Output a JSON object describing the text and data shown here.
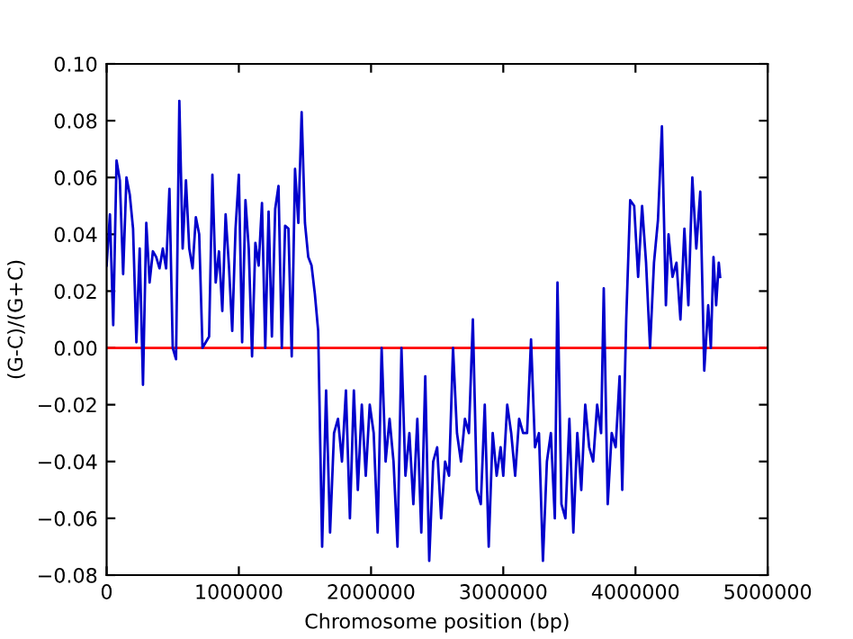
{
  "chart_data": {
    "type": "line",
    "xlabel": "Chromosome position (bp)",
    "ylabel": "(G-C)/(G+C)",
    "xlim": [
      0,
      5000000
    ],
    "ylim": [
      -0.08,
      0.1
    ],
    "xticks": [
      0,
      1000000,
      2000000,
      3000000,
      4000000,
      5000000
    ],
    "yticks": [
      {
        "value": -0.08,
        "label": "−0.08"
      },
      {
        "value": -0.06,
        "label": "−0.06"
      },
      {
        "value": -0.04,
        "label": "−0.04"
      },
      {
        "value": -0.02,
        "label": "−0.02"
      },
      {
        "value": 0,
        "label": "0.00"
      },
      {
        "value": 0.02,
        "label": "0.02"
      },
      {
        "value": 0.04,
        "label": "0.04"
      },
      {
        "value": 0.06,
        "label": "0.06"
      },
      {
        "value": 0.08,
        "label": "0.08"
      },
      {
        "value": 0.1,
        "label": "0.10"
      }
    ],
    "grid": false,
    "legend": false,
    "marker": "none",
    "line_style": "solid",
    "ref_lines": [
      {
        "axis": "y",
        "value": 0,
        "label": null,
        "color": "#ff0000",
        "line_style": "solid"
      }
    ],
    "series": [
      {
        "color": "#0000cc",
        "x": [
          0,
          25000,
          50000,
          75000,
          100000,
          125000,
          150000,
          175000,
          200000,
          225000,
          250000,
          275000,
          300000,
          325000,
          350000,
          375000,
          400000,
          425000,
          450000,
          475000,
          500000,
          525000,
          550000,
          575000,
          600000,
          625000,
          650000,
          675000,
          700000,
          725000,
          750000,
          775000,
          800000,
          825000,
          850000,
          875000,
          900000,
          925000,
          950000,
          975000,
          1000000,
          1025000,
          1050000,
          1075000,
          1100000,
          1125000,
          1150000,
          1175000,
          1200000,
          1225000,
          1250000,
          1275000,
          1300000,
          1325000,
          1350000,
          1375000,
          1400000,
          1425000,
          1450000,
          1475000,
          1500000,
          1525000,
          1550000,
          1575000,
          1600000,
          1630000,
          1660000,
          1690000,
          1720000,
          1750000,
          1780000,
          1810000,
          1840000,
          1870000,
          1900000,
          1930000,
          1960000,
          1990000,
          2020000,
          2050000,
          2080000,
          2110000,
          2140000,
          2170000,
          2200000,
          2230000,
          2260000,
          2290000,
          2320000,
          2350000,
          2380000,
          2410000,
          2440000,
          2470000,
          2500000,
          2530000,
          2560000,
          2590000,
          2620000,
          2650000,
          2680000,
          2710000,
          2740000,
          2770000,
          2800000,
          2830000,
          2860000,
          2890000,
          2920000,
          2950000,
          2980000,
          3000000,
          3030000,
          3060000,
          3090000,
          3120000,
          3150000,
          3180000,
          3210000,
          3240000,
          3270000,
          3300000,
          3330000,
          3360000,
          3390000,
          3410000,
          3440000,
          3470000,
          3500000,
          3530000,
          3560000,
          3590000,
          3620000,
          3650000,
          3680000,
          3710000,
          3740000,
          3760000,
          3790000,
          3820000,
          3850000,
          3880000,
          3900000,
          3930000,
          3960000,
          3990000,
          4020000,
          4050000,
          4080000,
          4110000,
          4140000,
          4170000,
          4200000,
          4230000,
          4250000,
          4280000,
          4310000,
          4340000,
          4370000,
          4400000,
          4430000,
          4460000,
          4490000,
          4520000,
          4550000,
          4570000,
          4590000,
          4610000,
          4630000,
          4640000
        ],
        "values": [
          0.029,
          0.047,
          0.008,
          0.066,
          0.059,
          0.026,
          0.06,
          0.054,
          0.042,
          0.002,
          0.035,
          -0.013,
          0.044,
          0.023,
          0.034,
          0.032,
          0.028,
          0.035,
          0.028,
          0.056,
          0.0,
          -0.004,
          0.087,
          0.035,
          0.059,
          0.035,
          0.028,
          0.046,
          0.04,
          0.0,
          0.002,
          0.004,
          0.061,
          0.023,
          0.034,
          0.013,
          0.047,
          0.029,
          0.006,
          0.042,
          0.061,
          0.002,
          0.052,
          0.035,
          -0.003,
          0.037,
          0.029,
          0.051,
          0.0,
          0.048,
          0.004,
          0.049,
          0.057,
          0.0,
          0.043,
          0.042,
          -0.003,
          0.063,
          0.044,
          0.083,
          0.044,
          0.032,
          0.029,
          0.019,
          0.006,
          -0.07,
          -0.015,
          -0.065,
          -0.03,
          -0.025,
          -0.04,
          -0.015,
          -0.06,
          -0.015,
          -0.05,
          -0.02,
          -0.045,
          -0.02,
          -0.03,
          -0.065,
          0.0,
          -0.04,
          -0.025,
          -0.04,
          -0.07,
          0.0,
          -0.045,
          -0.03,
          -0.055,
          -0.025,
          -0.065,
          -0.01,
          -0.075,
          -0.04,
          -0.035,
          -0.06,
          -0.04,
          -0.045,
          0.0,
          -0.03,
          -0.04,
          -0.025,
          -0.03,
          0.01,
          -0.05,
          -0.055,
          -0.02,
          -0.07,
          -0.03,
          -0.045,
          -0.035,
          -0.045,
          -0.02,
          -0.03,
          -0.045,
          -0.025,
          -0.03,
          -0.03,
          0.003,
          -0.035,
          -0.03,
          -0.075,
          -0.04,
          -0.03,
          -0.06,
          0.023,
          -0.055,
          -0.06,
          -0.025,
          -0.065,
          -0.03,
          -0.05,
          -0.02,
          -0.035,
          -0.04,
          -0.02,
          -0.03,
          0.021,
          -0.055,
          -0.03,
          -0.035,
          -0.01,
          -0.05,
          0.01,
          0.052,
          0.05,
          0.025,
          0.05,
          0.03,
          0.0,
          0.03,
          0.045,
          0.078,
          0.015,
          0.04,
          0.025,
          0.03,
          0.01,
          0.042,
          0.015,
          0.06,
          0.035,
          0.055,
          -0.008,
          0.015,
          0.0,
          0.032,
          0.015,
          0.03,
          0.025
        ]
      }
    ]
  }
}
